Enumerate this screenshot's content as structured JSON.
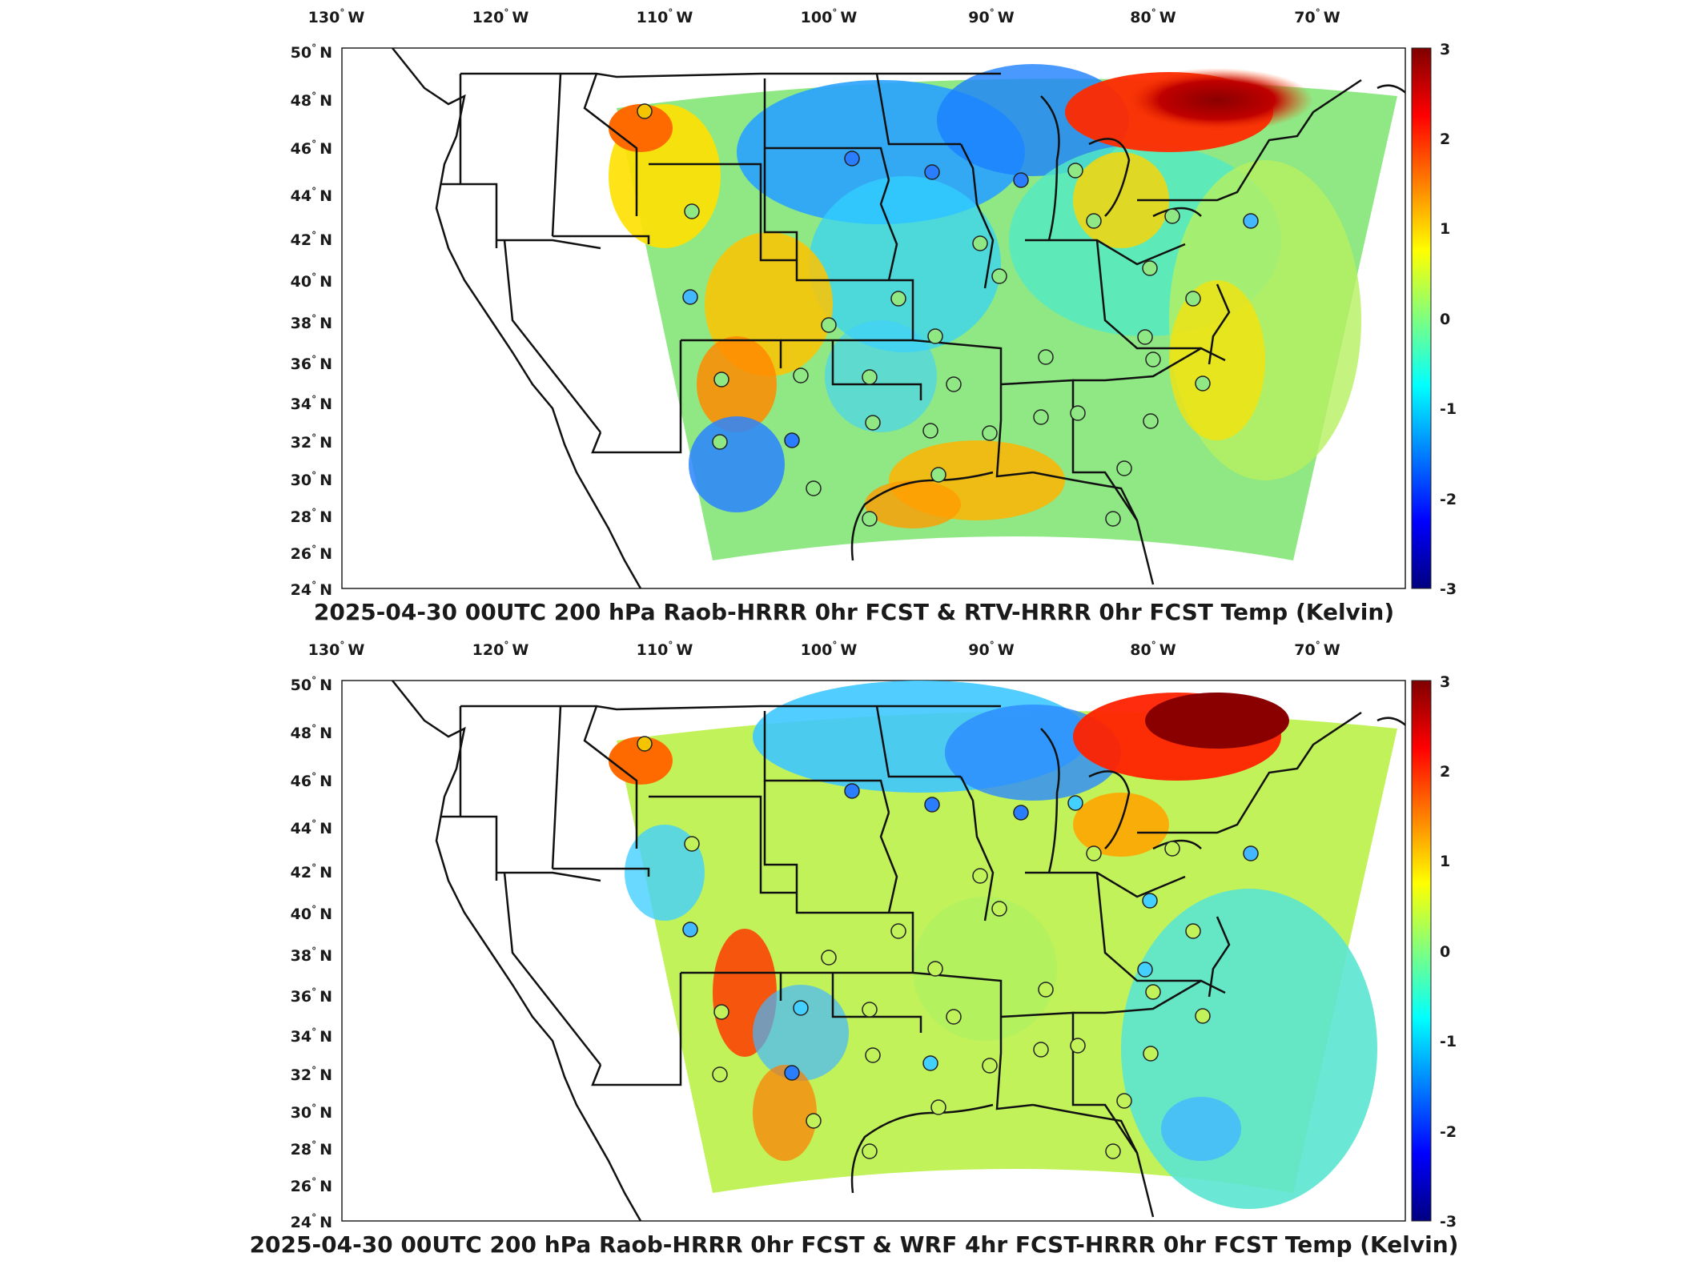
{
  "panels": [
    {
      "title": "2025-04-30 00UTC 200 hPa Raob-HRRR 0hr FCST & RTV-HRRR 0hr FCST Temp (Kelvin)",
      "lon_labels": [
        "130",
        "120",
        "110",
        "100",
        "90",
        "80",
        "70"
      ],
      "lat_labels": [
        "50",
        "48",
        "46",
        "44",
        "42",
        "40",
        "38",
        "36",
        "34",
        "32",
        "30",
        "28",
        "26",
        "24"
      ],
      "colorbar_ticks": [
        "3",
        "2",
        "1",
        "0",
        "-1",
        "-2",
        "-3"
      ]
    },
    {
      "title": "2025-04-30 00UTC 200 hPa Raob-HRRR 0hr FCST & WRF 4hr FCST-HRRR 0hr FCST Temp (Kelvin)",
      "lon_labels": [
        "130",
        "120",
        "110",
        "100",
        "90",
        "80",
        "70"
      ],
      "lat_labels": [
        "50",
        "48",
        "46",
        "44",
        "42",
        "40",
        "38",
        "36",
        "34",
        "32",
        "30",
        "28",
        "26",
        "24"
      ],
      "colorbar_ticks": [
        "3",
        "2",
        "1",
        "0",
        "-1",
        "-2",
        "-3"
      ]
    }
  ],
  "hemisphere": {
    "lon": "W",
    "lat": "N",
    "degree_symbol": "°"
  },
  "colormap": [
    "#00007f",
    "#0000ff",
    "#007fff",
    "#00ffff",
    "#7fff7f",
    "#ffff00",
    "#ff7f00",
    "#ff0000",
    "#7f0000"
  ]
}
